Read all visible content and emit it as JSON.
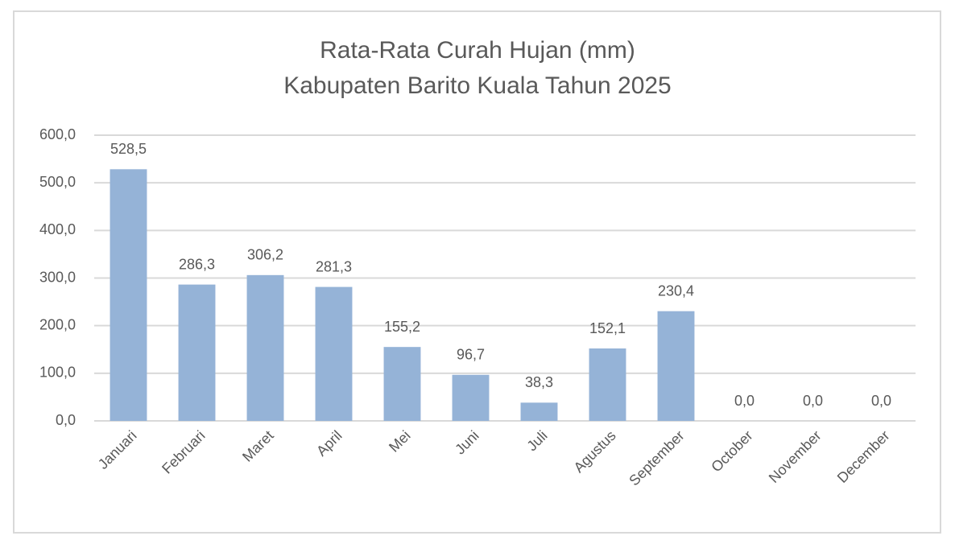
{
  "chart_data": {
    "type": "bar",
    "title": [
      "Rata-Rata Curah Hujan (mm)",
      "Kabupaten Barito Kuala Tahun 2025"
    ],
    "categories": [
      "Januari",
      "Februari",
      "Maret",
      "April",
      "Mei",
      "Juni",
      "Juli",
      "Agustus",
      "September",
      "October",
      "November",
      "December"
    ],
    "values": [
      528.5,
      286.3,
      306.2,
      281.3,
      155.2,
      96.7,
      38.3,
      152.1,
      230.4,
      0,
      0,
      0
    ],
    "value_labels": [
      "528,5",
      "286,3",
      "306,2",
      "281,3",
      "155,2",
      "96,7",
      "38,3",
      "152,1",
      "230,4",
      "0,0",
      "0,0",
      "0,0"
    ],
    "color": "#95b3d7",
    "ylim": [
      0,
      600
    ],
    "yticks": [
      {
        "value": 0,
        "label": "0,0"
      },
      {
        "value": 100,
        "label": "100,0"
      },
      {
        "value": 200,
        "label": "200,0"
      },
      {
        "value": 300,
        "label": "300,0"
      },
      {
        "value": 400,
        "label": "400,0"
      },
      {
        "value": 500,
        "label": "500,0"
      },
      {
        "value": 600,
        "label": "600,0"
      }
    ],
    "grid": true
  }
}
